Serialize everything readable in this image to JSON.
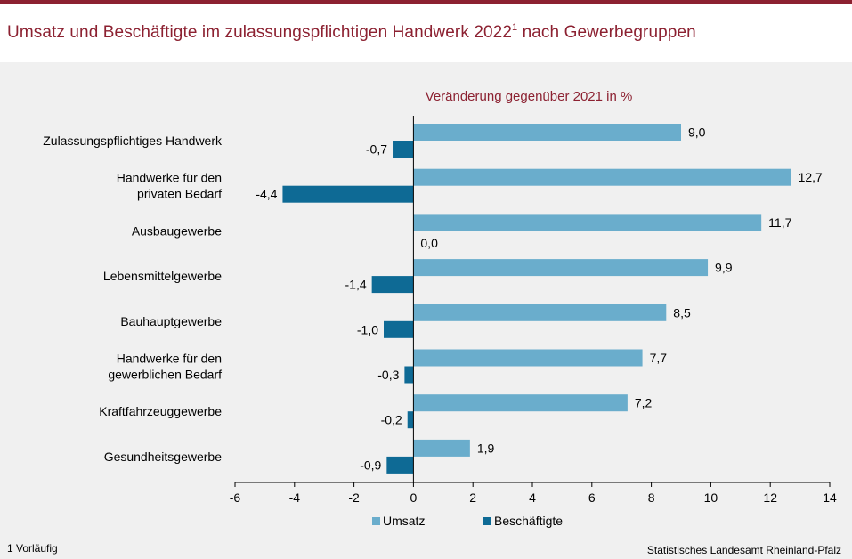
{
  "title": {
    "main": "Umsatz und Beschäftigte im zulassungspflichtigen Handwerk 2022",
    "sup": "1",
    "suffix": " nach Gewerbegruppen"
  },
  "footnote": "1 Vorläufig",
  "source": "Statistisches Landesamt Rheinland-Pfalz",
  "colors": {
    "umsatz": "#6aadcc",
    "beschaeftigte": "#0e6a95",
    "title": "#8c2131"
  },
  "chart_data": {
    "type": "bar",
    "orientation": "horizontal",
    "subtitle": "Veränderung gegenüber 2021 in %",
    "categories": [
      [
        "Zulassungspflichtiges Handwerk"
      ],
      [
        "Handwerke für den",
        "privaten Bedarf"
      ],
      [
        "Ausbaugewerbe"
      ],
      [
        "Lebensmittelgewerbe"
      ],
      [
        "Bauhauptgewerbe"
      ],
      [
        "Handwerke für den",
        "gewerblichen Bedarf"
      ],
      [
        "Kraftfahrzeuggewerbe"
      ],
      [
        "Gesundheitsgewerbe"
      ]
    ],
    "series": [
      {
        "name": "Umsatz",
        "values": [
          9.0,
          12.7,
          11.7,
          9.9,
          8.5,
          7.7,
          7.2,
          1.9
        ],
        "labels": [
          "9,0",
          "12,7",
          "11,7",
          "9,9",
          "8,5",
          "7,7",
          "7,2",
          "1,9"
        ]
      },
      {
        "name": "Beschäftigte",
        "values": [
          -0.7,
          -4.4,
          0.0,
          -1.4,
          -1.0,
          -0.3,
          -0.2,
          -0.9
        ],
        "labels": [
          "-0,7",
          "-4,4",
          "0,0",
          "-1,4",
          "-1,0",
          "-0,3",
          "-0,2",
          "-0,9"
        ]
      }
    ],
    "xlim": [
      -6,
      14
    ],
    "xticks": [
      -6,
      -4,
      -2,
      0,
      2,
      4,
      6,
      8,
      10,
      12,
      14
    ],
    "xticklabels": [
      "-6",
      "-4",
      "-2",
      "0",
      "2",
      "4",
      "6",
      "8",
      "10",
      "12",
      "14"
    ],
    "legend_position": "bottom"
  }
}
